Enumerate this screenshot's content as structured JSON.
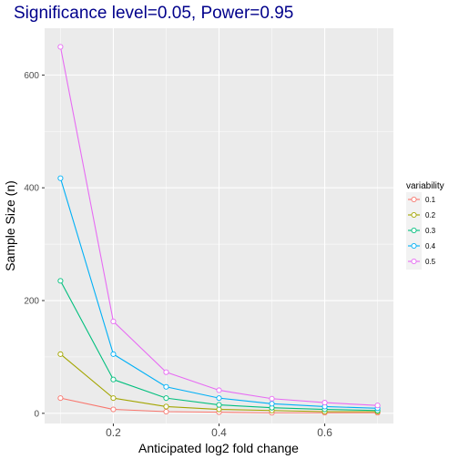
{
  "chart_data": {
    "type": "line",
    "title": "Significance level=0.05, Power=0.95",
    "xlabel": "Anticipated log2 fold change",
    "ylabel": "Sample Size (n)",
    "x": [
      0.1,
      0.2,
      0.3,
      0.4,
      0.5,
      0.6,
      0.7
    ],
    "xlim": [
      0.07,
      0.73
    ],
    "ylim": [
      -18,
      683
    ],
    "xticks": [
      0.2,
      0.4,
      0.6
    ],
    "xtick_labels": [
      "0.2",
      "0.4",
      "0.6"
    ],
    "yticks": [
      0,
      200,
      400,
      600
    ],
    "ytick_labels": [
      "0",
      "200",
      "400",
      "600"
    ],
    "grid": true,
    "legend": {
      "title": "variability",
      "position": "right"
    },
    "series": [
      {
        "name": "0.1",
        "color": "#F8766D",
        "values": [
          27,
          7,
          3,
          2,
          1,
          1,
          1
        ]
      },
      {
        "name": "0.2",
        "color": "#A3A500",
        "values": [
          105,
          27,
          12,
          7,
          5,
          3,
          3
        ]
      },
      {
        "name": "0.3",
        "color": "#00BF7D",
        "values": [
          235,
          60,
          27,
          15,
          10,
          7,
          5
        ]
      },
      {
        "name": "0.4",
        "color": "#00B0F6",
        "values": [
          417,
          105,
          47,
          27,
          17,
          12,
          9
        ]
      },
      {
        "name": "0.5",
        "color": "#E76BF3",
        "values": [
          650,
          163,
          73,
          41,
          26,
          19,
          14
        ]
      }
    ]
  }
}
